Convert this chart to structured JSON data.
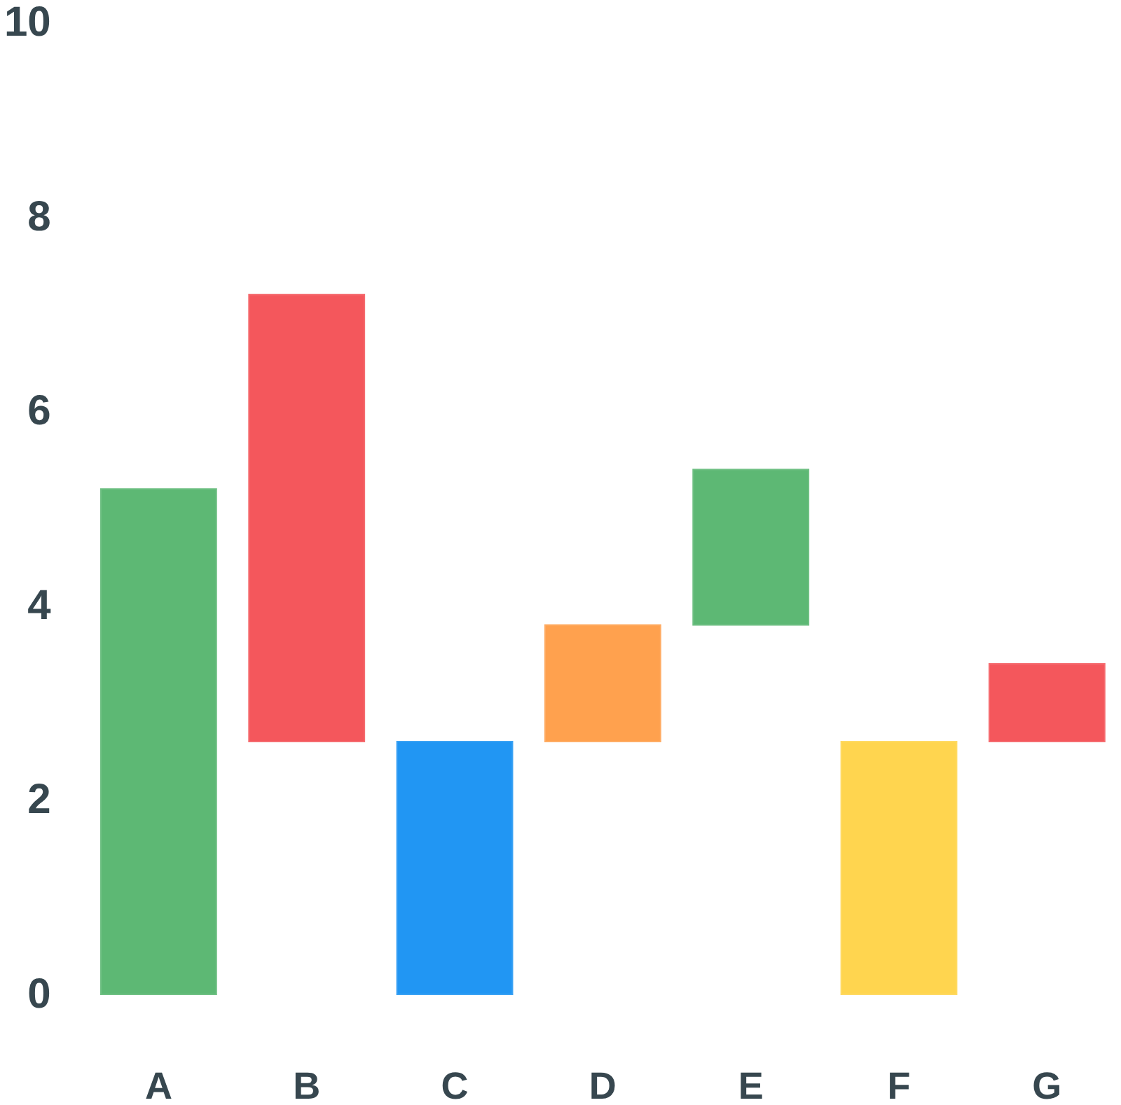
{
  "chart_data": {
    "type": "bar",
    "categories": [
      "A",
      "B",
      "C",
      "D",
      "E",
      "F",
      "G"
    ],
    "values": [
      5.2,
      4.6,
      2.6,
      1.2,
      1.6,
      2.6,
      0.8
    ],
    "base": [
      0,
      2.6,
      0,
      2.6,
      3.8,
      0,
      2.6
    ],
    "colors": [
      "#5db874",
      "#f4575c",
      "#2196f3",
      "#ffa14e",
      "#5db874",
      "#ffd54f",
      "#f4575c"
    ],
    "ylim": [
      0,
      10
    ],
    "yticks": [
      0,
      2,
      4,
      6,
      8,
      10
    ]
  }
}
